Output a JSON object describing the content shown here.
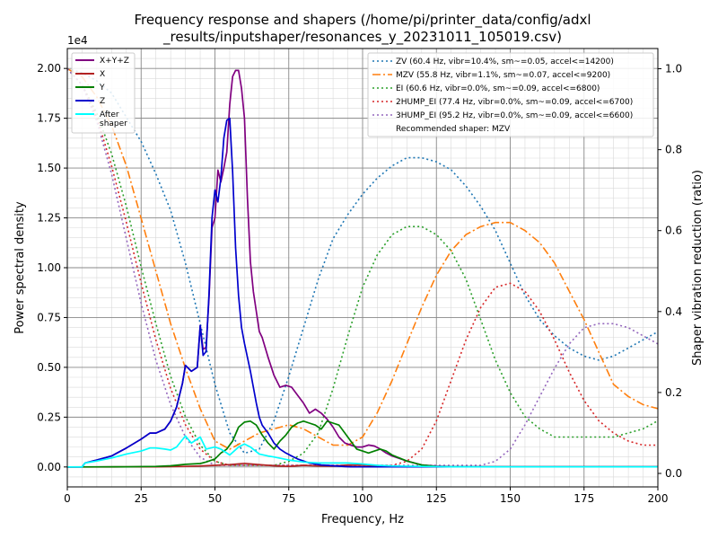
{
  "chart_data": {
    "type": "line",
    "title": "Frequency response and shapers (/home/pi/printer_data/config/adxl",
    "title_line2": "_results/inputshaper/resonances_y_20231011_105019.csv)",
    "xlabel": "Frequency, Hz",
    "ylabel": "Power spectral density",
    "y2label": "Shaper vibration reduction (ratio)",
    "y_offset_text": "1e4",
    "xlim": [
      0,
      200
    ],
    "ylim": [
      -1000,
      21000
    ],
    "y2lim": [
      -0.0333,
      1.05
    ],
    "x_ticks": [
      0,
      25,
      50,
      75,
      100,
      125,
      150,
      175,
      200
    ],
    "x_tick_labels": [
      "0",
      "25",
      "50",
      "75",
      "100",
      "125",
      "150",
      "175",
      "200"
    ],
    "y_ticks": [
      0,
      2500,
      5000,
      7500,
      10000,
      12500,
      15000,
      17500,
      20000
    ],
    "y_tick_labels": [
      "0.00",
      "0.25",
      "0.50",
      "0.75",
      "1.00",
      "1.25",
      "1.50",
      "1.75",
      "2.00"
    ],
    "y2_ticks": [
      0,
      0.2,
      0.4,
      0.6,
      0.8,
      1.0
    ],
    "y2_tick_labels": [
      "0.0",
      "0.2",
      "0.4",
      "0.6",
      "0.8",
      "1.0"
    ],
    "grid": true,
    "legend_left_placement": "upper-left",
    "legend_right_placement": "upper-right",
    "psd_series": [
      {
        "name": "X+Y+Z",
        "color": "#800080",
        "x": [
          0,
          5,
          6,
          10,
          15,
          20,
          25,
          28,
          30,
          33,
          35,
          37,
          39,
          40,
          42,
          44,
          45,
          46,
          47,
          48,
          49,
          50,
          51,
          52,
          53,
          54,
          55,
          56,
          57,
          58,
          59,
          60,
          61,
          62,
          63,
          64,
          65,
          66,
          68,
          70,
          72,
          74,
          76,
          78,
          80,
          82,
          84,
          86,
          88,
          90,
          92,
          94,
          96,
          98,
          100,
          102,
          104,
          106,
          108,
          110,
          112,
          115,
          120,
          125,
          130,
          140,
          150,
          160,
          170,
          180,
          190,
          200
        ],
        "y": [
          0,
          0,
          200,
          350,
          550,
          950,
          1400,
          1700,
          1700,
          1900,
          2300,
          3000,
          4200,
          5100,
          4800,
          5000,
          7100,
          5900,
          6000,
          8500,
          12000,
          12500,
          14900,
          14300,
          15000,
          15800,
          18200,
          19600,
          19900,
          19900,
          19000,
          17500,
          13500,
          10300,
          8800,
          7800,
          6800,
          6500,
          5500,
          4600,
          4000,
          4100,
          4000,
          3600,
          3200,
          2700,
          2900,
          2700,
          2400,
          2000,
          1500,
          1200,
          1100,
          1000,
          1000,
          1100,
          1050,
          900,
          700,
          550,
          450,
          300,
          100,
          40,
          20,
          10,
          5,
          5,
          5,
          5,
          5,
          5
        ]
      },
      {
        "name": "X",
        "color": "#b22222",
        "x": [
          0,
          10,
          20,
          30,
          40,
          45,
          50,
          55,
          60,
          65,
          70,
          75,
          80,
          85,
          90,
          95,
          100,
          105,
          110,
          120,
          130,
          140,
          160,
          180,
          200
        ],
        "y": [
          0,
          0,
          5,
          10,
          30,
          50,
          80,
          120,
          180,
          120,
          60,
          30,
          80,
          50,
          40,
          100,
          90,
          60,
          30,
          10,
          5,
          5,
          5,
          5,
          5
        ]
      },
      {
        "name": "Y",
        "color": "#008000",
        "x": [
          0,
          10,
          20,
          30,
          35,
          40,
          45,
          47,
          50,
          52,
          54,
          56,
          58,
          60,
          62,
          64,
          66,
          68,
          70,
          72,
          74,
          76,
          78,
          80,
          82,
          84,
          86,
          88,
          90,
          92,
          94,
          96,
          98,
          100,
          102,
          104,
          106,
          108,
          110,
          115,
          120,
          125,
          130,
          140,
          160,
          180,
          200
        ],
        "y": [
          0,
          5,
          10,
          30,
          60,
          130,
          170,
          250,
          400,
          700,
          900,
          1300,
          2000,
          2250,
          2300,
          2100,
          1600,
          1200,
          900,
          1300,
          1600,
          2000,
          2200,
          2300,
          2200,
          2100,
          1900,
          2300,
          2200,
          2100,
          1700,
          1300,
          900,
          800,
          700,
          800,
          900,
          800,
          600,
          300,
          100,
          30,
          10,
          5,
          5,
          5,
          5
        ]
      },
      {
        "name": "Z",
        "color": "#0000cd",
        "x": [
          0,
          5,
          6,
          10,
          15,
          20,
          25,
          28,
          30,
          33,
          35,
          37,
          39,
          40,
          42,
          44,
          45,
          46,
          47,
          48,
          49,
          50,
          51,
          52,
          53,
          54,
          55,
          56,
          57,
          58,
          59,
          60,
          61,
          62,
          63,
          64,
          65,
          66,
          68,
          70,
          72,
          74,
          76,
          78,
          80,
          82,
          84,
          86,
          88,
          90,
          92,
          94,
          96,
          98,
          100,
          102,
          104,
          106,
          108,
          110,
          112,
          115,
          120,
          125,
          130,
          140,
          150,
          160,
          170,
          180,
          190,
          200
        ],
        "y": [
          0,
          0,
          200,
          350,
          550,
          950,
          1400,
          1700,
          1700,
          1900,
          2300,
          3000,
          4200,
          5100,
          4800,
          5000,
          7100,
          5600,
          5800,
          8700,
          12500,
          13900,
          13300,
          14500,
          16500,
          17400,
          17500,
          14800,
          11000,
          8600,
          7000,
          6200,
          5500,
          4800,
          4000,
          3200,
          2500,
          2100,
          1700,
          1200,
          900,
          700,
          550,
          400,
          300,
          200,
          150,
          100,
          80,
          60,
          40,
          20,
          10,
          5,
          5,
          5,
          5,
          5,
          5,
          5,
          5,
          5,
          5,
          5,
          5,
          5,
          5,
          5,
          5,
          5,
          5,
          5
        ]
      },
      {
        "name": "After\nshaper",
        "color": "#00ffff",
        "x": [
          0,
          5,
          6,
          10,
          15,
          20,
          25,
          28,
          30,
          33,
          35,
          37,
          40,
          42,
          45,
          47,
          50,
          52,
          55,
          58,
          60,
          62,
          65,
          68,
          70,
          75,
          80,
          85,
          90,
          95,
          100,
          105,
          110,
          120,
          130,
          140,
          150,
          160,
          180,
          200
        ],
        "y": [
          0,
          0,
          200,
          300,
          450,
          650,
          800,
          950,
          950,
          900,
          850,
          1000,
          1550,
          1200,
          1500,
          900,
          1000,
          900,
          600,
          1000,
          1150,
          1000,
          650,
          550,
          500,
          350,
          250,
          200,
          200,
          200,
          150,
          80,
          50,
          30,
          10,
          5,
          5,
          5,
          5,
          5
        ]
      }
    ],
    "shaper_series": [
      {
        "name": "ZV (60.4 Hz, vibr=10.4%, sm~=0.05, accel<=14200)",
        "color": "#1f77b4",
        "dash": "dotted",
        "x": [
          0,
          5,
          10,
          15,
          20,
          25,
          30,
          35,
          40,
          45,
          50,
          55,
          60,
          65,
          70,
          75,
          80,
          85,
          90,
          95,
          100,
          105,
          110,
          115,
          120,
          125,
          130,
          135,
          140,
          145,
          150,
          155,
          160,
          165,
          170,
          175,
          180,
          185,
          190,
          195,
          200
        ],
        "y": [
          1.0,
          0.99,
          0.97,
          0.94,
          0.88,
          0.82,
          0.74,
          0.65,
          0.52,
          0.37,
          0.22,
          0.1,
          0.05,
          0.06,
          0.13,
          0.24,
          0.36,
          0.48,
          0.58,
          0.64,
          0.69,
          0.73,
          0.76,
          0.78,
          0.78,
          0.77,
          0.75,
          0.71,
          0.66,
          0.6,
          0.52,
          0.44,
          0.38,
          0.34,
          0.31,
          0.29,
          0.28,
          0.29,
          0.31,
          0.33,
          0.35
        ]
      },
      {
        "name": "MZV (55.8 Hz, vibr=1.1%, sm~=0.07, accel<=9200)",
        "color": "#ff7f0e",
        "dash": "dashdot",
        "x": [
          0,
          5,
          10,
          15,
          20,
          25,
          30,
          35,
          40,
          45,
          50,
          55,
          60,
          65,
          70,
          75,
          80,
          85,
          90,
          95,
          100,
          105,
          110,
          115,
          120,
          125,
          130,
          135,
          140,
          145,
          150,
          155,
          160,
          165,
          170,
          175,
          180,
          185,
          190,
          195,
          200
        ],
        "y": [
          1.0,
          0.98,
          0.93,
          0.86,
          0.76,
          0.63,
          0.5,
          0.37,
          0.26,
          0.16,
          0.08,
          0.06,
          0.08,
          0.1,
          0.11,
          0.12,
          0.11,
          0.09,
          0.07,
          0.07,
          0.09,
          0.15,
          0.23,
          0.32,
          0.41,
          0.49,
          0.55,
          0.59,
          0.61,
          0.62,
          0.62,
          0.6,
          0.57,
          0.52,
          0.45,
          0.38,
          0.3,
          0.22,
          0.19,
          0.17,
          0.16
        ]
      },
      {
        "name": "EI (60.6 Hz, vibr=0.0%, sm~=0.09, accel<=6800)",
        "color": "#2ca02c",
        "dash": "dotted",
        "x": [
          0,
          5,
          10,
          15,
          20,
          25,
          30,
          35,
          40,
          45,
          50,
          55,
          60,
          65,
          70,
          75,
          80,
          85,
          90,
          95,
          100,
          105,
          110,
          115,
          120,
          125,
          130,
          135,
          140,
          145,
          150,
          155,
          160,
          165,
          170,
          175,
          180,
          185,
          190,
          195,
          200
        ],
        "y": [
          1.0,
          0.96,
          0.89,
          0.79,
          0.66,
          0.51,
          0.37,
          0.24,
          0.14,
          0.07,
          0.03,
          0.02,
          0.02,
          0.02,
          0.02,
          0.03,
          0.05,
          0.1,
          0.21,
          0.34,
          0.46,
          0.54,
          0.59,
          0.61,
          0.61,
          0.59,
          0.55,
          0.48,
          0.38,
          0.28,
          0.2,
          0.14,
          0.11,
          0.09,
          0.09,
          0.09,
          0.09,
          0.09,
          0.1,
          0.11,
          0.13
        ]
      },
      {
        "name": "2HUMP_EI (77.4 Hz, vibr=0.0%, sm~=0.09, accel<=6700)",
        "color": "#d62728",
        "dash": "dotted",
        "x": [
          0,
          5,
          10,
          15,
          20,
          25,
          30,
          35,
          40,
          45,
          50,
          55,
          60,
          65,
          70,
          75,
          80,
          85,
          90,
          95,
          100,
          105,
          110,
          115,
          120,
          125,
          130,
          135,
          140,
          145,
          150,
          155,
          160,
          165,
          170,
          175,
          180,
          185,
          190,
          195,
          200
        ],
        "y": [
          1.0,
          0.96,
          0.88,
          0.76,
          0.62,
          0.47,
          0.33,
          0.21,
          0.12,
          0.06,
          0.03,
          0.02,
          0.02,
          0.02,
          0.02,
          0.02,
          0.02,
          0.02,
          0.02,
          0.02,
          0.02,
          0.02,
          0.02,
          0.03,
          0.06,
          0.13,
          0.23,
          0.33,
          0.41,
          0.46,
          0.47,
          0.45,
          0.4,
          0.33,
          0.25,
          0.18,
          0.13,
          0.1,
          0.08,
          0.07,
          0.07
        ]
      },
      {
        "name": "3HUMP_EI (95.2 Hz, vibr=0.0%, sm~=0.09, accel<=6600)",
        "color": "#9467bd",
        "dash": "dotted",
        "x": [
          0,
          5,
          10,
          15,
          20,
          25,
          30,
          35,
          40,
          45,
          50,
          55,
          60,
          65,
          70,
          75,
          80,
          85,
          90,
          95,
          100,
          105,
          110,
          115,
          120,
          125,
          130,
          135,
          140,
          145,
          150,
          155,
          160,
          165,
          170,
          175,
          180,
          185,
          190,
          195,
          200
        ],
        "y": [
          1.0,
          0.96,
          0.87,
          0.74,
          0.58,
          0.42,
          0.28,
          0.17,
          0.09,
          0.04,
          0.02,
          0.02,
          0.02,
          0.02,
          0.02,
          0.02,
          0.02,
          0.02,
          0.02,
          0.02,
          0.02,
          0.02,
          0.02,
          0.02,
          0.02,
          0.02,
          0.02,
          0.02,
          0.02,
          0.03,
          0.06,
          0.12,
          0.19,
          0.26,
          0.32,
          0.36,
          0.37,
          0.37,
          0.36,
          0.34,
          0.32
        ]
      }
    ],
    "recommended_text": "Recommended shaper: MZV"
  }
}
